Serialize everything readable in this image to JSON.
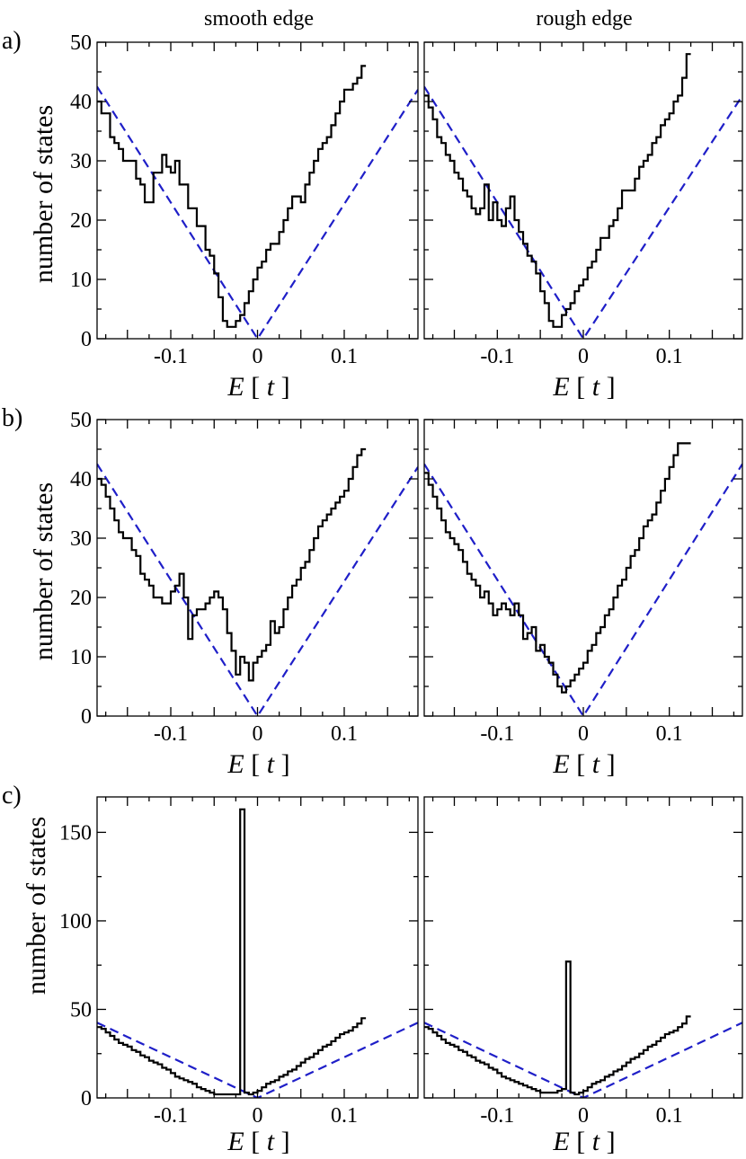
{
  "figure": {
    "column_titles": [
      "smooth edge",
      "rough edge"
    ],
    "row_labels": [
      "a)",
      "b)",
      "c)"
    ],
    "ylabel": "number of states",
    "xlabel_var": "E",
    "xlabel_unit": "t"
  },
  "colors": {
    "histogram": "#000000",
    "reference": "#1f1fc8"
  },
  "chart_data": [
    {
      "id": "a-smooth",
      "type": "line",
      "step": true,
      "row": "a)",
      "column": "smooth edge",
      "xlabel": "E [ t ]",
      "ylabel": "number of states",
      "xlim": [
        -0.185,
        0.185
      ],
      "ylim": [
        0,
        50
      ],
      "xticks": [
        -0.1,
        0,
        0.1
      ],
      "xtick_labels": [
        "-0.1",
        "0",
        "0.1"
      ],
      "yticks": [
        0,
        10,
        20,
        30,
        40,
        50
      ],
      "ytick_labels": [
        "0",
        "10",
        "20",
        "30",
        "40",
        "50"
      ],
      "bin_width": 0.005,
      "x_start": -0.185,
      "counts": [
        40,
        38,
        38,
        34,
        33,
        32,
        30,
        30,
        30,
        27,
        26,
        23,
        23,
        28,
        28,
        31,
        29,
        28,
        30,
        26,
        26,
        22,
        22,
        19,
        19,
        15,
        14,
        11,
        7,
        3,
        2,
        2,
        3,
        4,
        6,
        8,
        10,
        12,
        13,
        15,
        16,
        16,
        18,
        20,
        22,
        24,
        24,
        23,
        26,
        28,
        30,
        32,
        33,
        34,
        36,
        38,
        40,
        42,
        42,
        43,
        44,
        46
      ],
      "series": [
        {
          "name": "",
          "kind": "histogram"
        },
        {
          "name": "",
          "kind": "reference-v",
          "x": [
            -0.185,
            0,
            0.185
          ],
          "y": [
            42.5,
            0,
            42
          ]
        }
      ]
    },
    {
      "id": "a-rough",
      "type": "line",
      "step": true,
      "row": "a)",
      "column": "rough edge",
      "xlabel": "E [ t ]",
      "ylabel": "number of states",
      "xlim": [
        -0.185,
        0.185
      ],
      "ylim": [
        0,
        50
      ],
      "xticks": [
        -0.1,
        0,
        0.1
      ],
      "xtick_labels": [
        "-0.1",
        "0",
        "0.1"
      ],
      "yticks": [
        0,
        10,
        20,
        30,
        40,
        50
      ],
      "ytick_labels": [
        "0",
        "10",
        "20",
        "30",
        "40",
        "50"
      ],
      "bin_width": 0.005,
      "x_start": -0.185,
      "counts": [
        41,
        39,
        37,
        34,
        33,
        31,
        30,
        28,
        27,
        25,
        24,
        22,
        21,
        22,
        26,
        20,
        23,
        20,
        19,
        22,
        24,
        20,
        18,
        16,
        14,
        13,
        11,
        8,
        6,
        3,
        2,
        2,
        4,
        5,
        6,
        8,
        9,
        10,
        12,
        13,
        15,
        17,
        17,
        19,
        20,
        22,
        25,
        25,
        25,
        27,
        29,
        30,
        31,
        33,
        34,
        36,
        37,
        38,
        40,
        41,
        44,
        48
      ],
      "series": [
        {
          "name": "",
          "kind": "histogram"
        },
        {
          "name": "",
          "kind": "reference-v",
          "x": [
            -0.185,
            0,
            0.185
          ],
          "y": [
            42.5,
            0,
            41
          ]
        }
      ]
    },
    {
      "id": "b-smooth",
      "type": "line",
      "step": true,
      "row": "b)",
      "column": "smooth edge",
      "xlabel": "E [ t ]",
      "ylabel": "number of states",
      "xlim": [
        -0.185,
        0.185
      ],
      "ylim": [
        0,
        50
      ],
      "xticks": [
        -0.1,
        0,
        0.1
      ],
      "xtick_labels": [
        "-0.1",
        "0",
        "0.1"
      ],
      "yticks": [
        0,
        10,
        20,
        30,
        40,
        50
      ],
      "ytick_labels": [
        "0",
        "10",
        "20",
        "30",
        "40",
        "50"
      ],
      "bin_width": 0.005,
      "x_start": -0.185,
      "counts": [
        40,
        39,
        37,
        35,
        33,
        31,
        30,
        30,
        28,
        27,
        24,
        23,
        22,
        20,
        20,
        19,
        19,
        21,
        22,
        24,
        20,
        13,
        17,
        18,
        18,
        19,
        20,
        21,
        20,
        18,
        14,
        11,
        7,
        10,
        9,
        6,
        9,
        10,
        11,
        12,
        16,
        14,
        15,
        18,
        20,
        22,
        23,
        25,
        26,
        28,
        30,
        32,
        33,
        34,
        35,
        36,
        37,
        38,
        40,
        42,
        44,
        45
      ],
      "series": [
        {
          "name": "",
          "kind": "histogram"
        },
        {
          "name": "",
          "kind": "reference-v",
          "x": [
            -0.185,
            0,
            0.185
          ],
          "y": [
            42.5,
            0,
            42
          ]
        }
      ]
    },
    {
      "id": "b-rough",
      "type": "line",
      "step": true,
      "row": "b)",
      "column": "rough edge",
      "xlabel": "E [ t ]",
      "ylabel": "number of states",
      "xlim": [
        -0.185,
        0.185
      ],
      "ylim": [
        0,
        50
      ],
      "xticks": [
        -0.1,
        0,
        0.1
      ],
      "xtick_labels": [
        "-0.1",
        "0",
        "0.1"
      ],
      "yticks": [
        0,
        10,
        20,
        30,
        40,
        50
      ],
      "ytick_labels": [
        "0",
        "10",
        "20",
        "30",
        "40",
        "50"
      ],
      "bin_width": 0.005,
      "x_start": -0.185,
      "counts": [
        41,
        39,
        37,
        35,
        33,
        31,
        30,
        29,
        28,
        26,
        24,
        23,
        22,
        20,
        21,
        19,
        17,
        18,
        19,
        18,
        17,
        19,
        17,
        13,
        14,
        15,
        11,
        12,
        10,
        9,
        7,
        5,
        4,
        5,
        6,
        7,
        8,
        9,
        11,
        12,
        14,
        15,
        17,
        18,
        20,
        22,
        23,
        25,
        27,
        28,
        30,
        32,
        33,
        34,
        36,
        38,
        40,
        42,
        44,
        46,
        46,
        46
      ],
      "series": [
        {
          "name": "",
          "kind": "histogram"
        },
        {
          "name": "",
          "kind": "reference-v",
          "x": [
            -0.185,
            0,
            0.185
          ],
          "y": [
            42.5,
            0,
            42.5
          ]
        }
      ]
    },
    {
      "id": "c-smooth",
      "type": "line",
      "step": true,
      "row": "c)",
      "column": "smooth edge",
      "xlabel": "E [ t ]",
      "ylabel": "number of states",
      "xlim": [
        -0.185,
        0.185
      ],
      "ylim": [
        0,
        170
      ],
      "xticks": [
        -0.1,
        0,
        0.1
      ],
      "xtick_labels": [
        "-0.1",
        "0",
        "0.1"
      ],
      "yticks": [
        0,
        50,
        100,
        150
      ],
      "ytick_labels": [
        "0",
        "50",
        "100",
        "150"
      ],
      "bin_width": 0.005,
      "x_start": -0.185,
      "counts": [
        40,
        39,
        37,
        35,
        33,
        31,
        30,
        29,
        27,
        26,
        24,
        23,
        21,
        20,
        19,
        17,
        16,
        14,
        12,
        11,
        10,
        9,
        8,
        6,
        5,
        4,
        3,
        2,
        2,
        2,
        2,
        2,
        2,
        163,
        3,
        2,
        3,
        4,
        6,
        8,
        9,
        10,
        12,
        13,
        15,
        16,
        18,
        20,
        22,
        23,
        25,
        27,
        29,
        30,
        32,
        34,
        36,
        37,
        38,
        40,
        42,
        45
      ],
      "series": [
        {
          "name": "",
          "kind": "histogram"
        },
        {
          "name": "",
          "kind": "reference-v",
          "x": [
            -0.185,
            0,
            0.185
          ],
          "y": [
            42.5,
            0,
            42.5
          ]
        }
      ]
    },
    {
      "id": "c-rough",
      "type": "line",
      "step": true,
      "row": "c)",
      "column": "rough edge",
      "xlabel": "E [ t ]",
      "ylabel": "number of states",
      "xlim": [
        -0.185,
        0.185
      ],
      "ylim": [
        0,
        170
      ],
      "xticks": [
        -0.1,
        0,
        0.1
      ],
      "xtick_labels": [
        "-0.1",
        "0",
        "0.1"
      ],
      "yticks": [
        0,
        50,
        100,
        150
      ],
      "ytick_labels": [
        "",
        "",
        "",
        ""
      ],
      "bin_width": 0.005,
      "x_start": -0.185,
      "counts": [
        40,
        39,
        37,
        35,
        33,
        31,
        30,
        29,
        27,
        26,
        24,
        23,
        21,
        20,
        19,
        17,
        16,
        14,
        12,
        11,
        10,
        9,
        8,
        7,
        6,
        5,
        4,
        3,
        3,
        3,
        3,
        4,
        5,
        77,
        3,
        2,
        3,
        4,
        6,
        8,
        9,
        10,
        12,
        13,
        15,
        16,
        18,
        20,
        22,
        23,
        25,
        27,
        29,
        30,
        32,
        34,
        36,
        37,
        38,
        40,
        42,
        46
      ],
      "series": [
        {
          "name": "",
          "kind": "histogram"
        },
        {
          "name": "",
          "kind": "reference-v",
          "x": [
            -0.185,
            0,
            0.185
          ],
          "y": [
            42.5,
            0,
            42.5
          ]
        }
      ]
    }
  ]
}
